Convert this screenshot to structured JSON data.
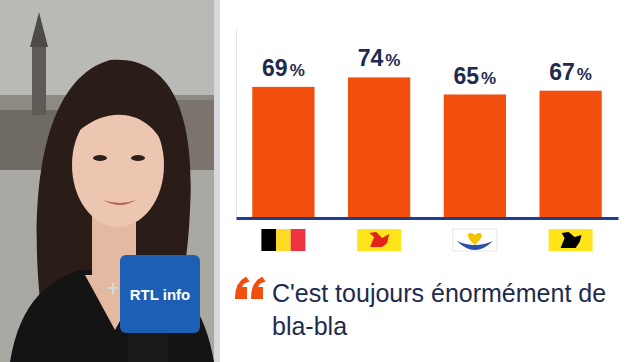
{
  "chart_data": {
    "type": "bar",
    "categories": [
      null,
      null,
      null,
      null
    ],
    "values": [
      69,
      74,
      65,
      67
    ],
    "value_labels": [
      "69%",
      "74%",
      "65%",
      "67%"
    ],
    "color": "#f24e0d",
    "ylim": [
      0,
      100
    ],
    "yticks": [],
    "tick_labels": false,
    "data_labels": true,
    "annotations": [
      "C'est toujours énormément de bla-bla",
      "RTL info"
    ]
  }
}
